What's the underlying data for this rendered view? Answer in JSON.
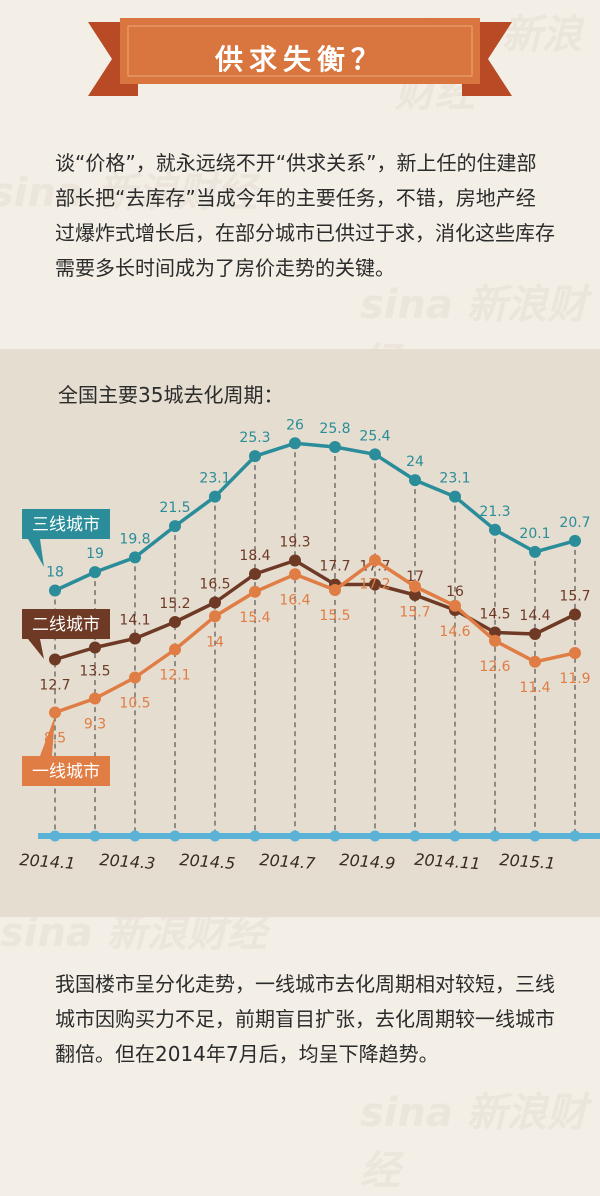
{
  "title": "供求失衡？",
  "intro": "谈“价格”，就永远绕不开“供求关系”，新上任的住建部部长把“去库存”当成今年的主要任务，不错，房地产经过爆炸式增长后，在部分城市已供过于求，消化这些库存需要多长时间成为了房价走势的关键。",
  "chart_subtitle": "全国主要35城去化周期：",
  "conclusion": "我国楼市呈分化走势，一线城市去化周期相对较短，三线城市因购买力不足，前期盲目扩张，去化周期较一线城市翻倍。但在2014年7月后，均呈下降趋势。",
  "colors": {
    "banner": "#d9763f",
    "banner_dark": "#b84a25",
    "tier3": "#2a8d99",
    "tier2": "#6e3a25",
    "tier1": "#e07d45",
    "axis": "#5ab3d6",
    "dash": "#555555",
    "chart_bg": "#e5ddd0"
  },
  "chart_data": {
    "type": "line",
    "title": "全国主要35城去化周期：",
    "xlabel": "",
    "ylabel": "",
    "x_tick_labels": [
      "2014.1",
      "2014.3",
      "2014.5",
      "2014.7",
      "2014.9",
      "2014.11",
      "2015.1"
    ],
    "months": [
      "2014.1",
      "2014.2",
      "2014.3",
      "2014.4",
      "2014.5",
      "2014.6",
      "2014.7",
      "2014.8",
      "2014.9",
      "2014.10",
      "2014.11",
      "2014.12",
      "2015.1",
      "2015.2"
    ],
    "series": [
      {
        "name": "三线城市",
        "key": "tier3",
        "values": [
          18,
          19,
          19.8,
          21.5,
          23.1,
          25.3,
          26,
          25.8,
          25.4,
          24,
          23.1,
          21.3,
          20.1,
          20.7
        ]
      },
      {
        "name": "二线城市",
        "key": "tier2",
        "values": [
          12.7,
          13.5,
          14.1,
          15.2,
          16.5,
          18.4,
          19.3,
          17.7,
          17.7,
          17,
          16,
          14.5,
          14.4,
          15.7
        ]
      },
      {
        "name": "一线城市",
        "key": "tier1",
        "values": [
          8.5,
          9.3,
          10.5,
          12.1,
          14,
          15.4,
          16.4,
          15.5,
          17.2,
          15.7,
          14.6,
          12.6,
          11.4,
          11.9
        ]
      }
    ],
    "value_labels": {
      "tier3": [
        "18",
        "19",
        "19.8",
        "21.5",
        "23.1",
        "25.3",
        "26",
        "25.8",
        "25.4",
        "24",
        "23.1",
        "21.3",
        "20.1",
        "20.7"
      ],
      "tier2": [
        "12.7",
        "13.5",
        "14.1",
        "15.2",
        "16.5",
        "18.4",
        "19.3",
        "17.7",
        "17.7",
        "17",
        "16",
        "14.5",
        "14.4",
        "15.7"
      ],
      "tier1": [
        "8.5",
        "9.3",
        "10.5",
        "12.1",
        "14",
        "15.4",
        "16.4",
        "15.5",
        "17.2",
        "15.7",
        "14.6",
        "12.6",
        "11.4",
        "11.9"
      ]
    },
    "legend": [
      "三线城市",
      "二线城市",
      "一线城市"
    ],
    "grid": false
  }
}
